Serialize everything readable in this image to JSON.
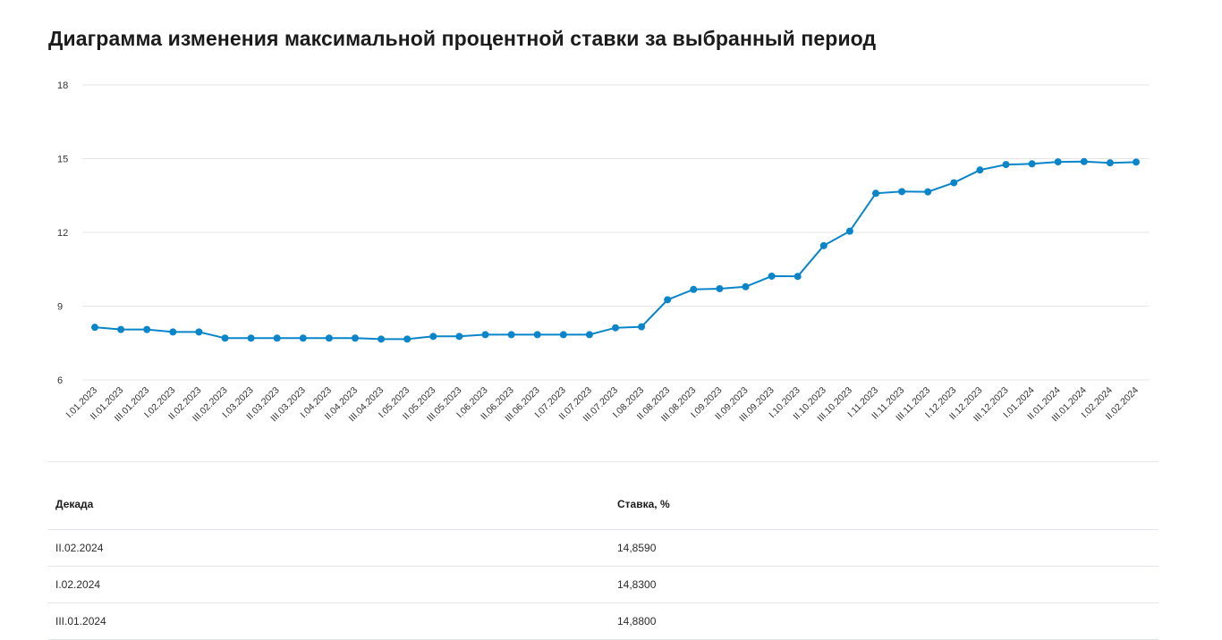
{
  "page": {
    "title": "Диаграмма изменения максимальной процентной ставки за выбранный период"
  },
  "colors": {
    "line": "#0a85c9",
    "grid": "#e6e6e6",
    "tick_text": "#333333"
  },
  "chart_data": {
    "type": "line",
    "title": "",
    "xlabel": "",
    "ylabel": "",
    "ylim": [
      6,
      18
    ],
    "yticks": [
      6,
      9,
      12,
      15,
      18
    ],
    "grid": "horizontal",
    "categories": [
      "I.01.2023",
      "II.01.2023",
      "III.01.2023",
      "I.02.2023",
      "II.02.2023",
      "III.02.2023",
      "I.03.2023",
      "II.03.2023",
      "III.03.2023",
      "I.04.2023",
      "II.04.2023",
      "III.04.2023",
      "I.05.2023",
      "II.05.2023",
      "III.05.2023",
      "I.06.2023",
      "II.06.2023",
      "III.06.2023",
      "I.07.2023",
      "II.07.2023",
      "III.07.2023",
      "I.08.2023",
      "II.08.2023",
      "III.08.2023",
      "I.09.2023",
      "II.09.2023",
      "III.09.2023",
      "I.10.2023",
      "II.10.2023",
      "III.10.2023",
      "I.11.2023",
      "II.11.2023",
      "III.11.2023",
      "I.12.2023",
      "II.12.2023",
      "III.12.2023",
      "I.01.2024",
      "II.01.2024",
      "III.01.2024",
      "I.02.2024",
      "II.02.2024"
    ],
    "series": [
      {
        "values": [
          8.14,
          8.05,
          8.05,
          7.95,
          7.95,
          7.7,
          7.7,
          7.7,
          7.7,
          7.7,
          7.7,
          7.66,
          7.66,
          7.77,
          7.77,
          7.84,
          7.84,
          7.84,
          7.84,
          7.84,
          8.12,
          8.16,
          9.26,
          9.68,
          9.71,
          9.79,
          10.22,
          10.21,
          11.46,
          12.05,
          13.59,
          13.66,
          13.65,
          14.02,
          14.54,
          14.76,
          14.79,
          14.87,
          14.88,
          14.83,
          14.86
        ]
      }
    ]
  },
  "table": {
    "headers": [
      "Декада",
      "Ставка, %"
    ],
    "rows": [
      [
        "II.02.2024",
        "14,8590"
      ],
      [
        "I.02.2024",
        "14,8300"
      ],
      [
        "III.01.2024",
        "14,8800"
      ]
    ]
  }
}
